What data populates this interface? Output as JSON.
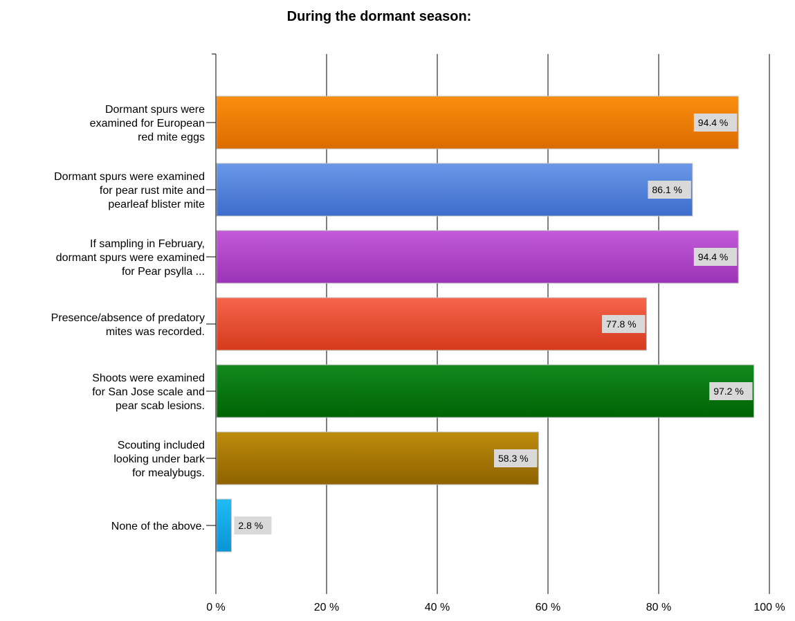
{
  "chart_data": {
    "type": "bar",
    "orientation": "horizontal",
    "title": "During the dormant season:",
    "xlabel": "",
    "ylabel": "",
    "xlim": [
      0,
      100
    ],
    "grid": true,
    "legend": "none",
    "tick_labels": [
      "0 %",
      "20 %",
      "40 %",
      "60 %",
      "80 %",
      "100 %"
    ],
    "categories": [
      "Dormant spurs were examined for European red mite eggs",
      "Dormant spurs were examined for pear rust mite and pearleaf blister mite",
      "If sampling in February, dormant spurs were examined for Pear psylla ...",
      "Presence/absence of predatory mites was recorded.",
      "Shoots were examined for San Jose scale and pear scab lesions.",
      "Scouting included looking under bark for mealybugs.",
      "None of the above."
    ],
    "category_lines": [
      [
        "Dormant spurs were",
        "examined for European",
        "red mite eggs"
      ],
      [
        "Dormant spurs were examined",
        "for pear rust mite and",
        "pearleaf blister mite"
      ],
      [
        "If sampling in February,",
        "dormant spurs were examined",
        "for Pear psylla ..."
      ],
      [
        "Presence/absence of predatory",
        "mites was recorded."
      ],
      [
        "Shoots were examined",
        "for San Jose scale and",
        "pear scab lesions."
      ],
      [
        "Scouting included",
        "looking under bark",
        "for mealybugs."
      ],
      [
        "None of the above."
      ]
    ],
    "values": [
      94.4,
      86.1,
      94.4,
      77.8,
      97.2,
      58.3,
      2.8
    ],
    "value_labels": [
      "94.4 %",
      "86.1 %",
      "94.4 %",
      "77.8 %",
      "97.2 %",
      "58.3 %",
      "2.8 %"
    ],
    "colors": [
      [
        "#fb8e0f",
        "#dc6c00"
      ],
      [
        "#6a98e8",
        "#3d6ccb"
      ],
      [
        "#c25bd8",
        "#9b33b6"
      ],
      [
        "#f6654a",
        "#d43a1e"
      ],
      [
        "#13891d",
        "#006304"
      ],
      [
        "#bd8b0c",
        "#8e6300"
      ],
      [
        "#1fbcf4",
        "#0a94d4"
      ]
    ]
  }
}
